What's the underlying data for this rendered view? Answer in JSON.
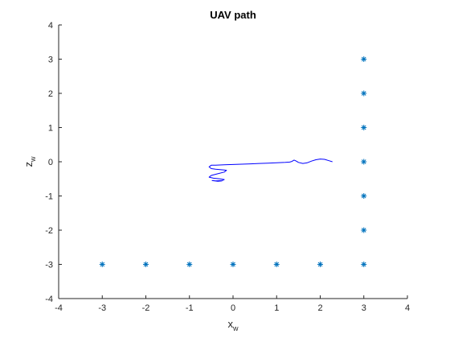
{
  "chart_data": {
    "type": "line",
    "title": "UAV path",
    "xlabel": {
      "main": "x",
      "sub": "w"
    },
    "ylabel": {
      "main": "z",
      "sub": "w"
    },
    "xlim": [
      -4,
      4
    ],
    "ylim": [
      -4,
      4
    ],
    "xticks": [
      -4,
      -3,
      -2,
      -1,
      0,
      1,
      2,
      3,
      4
    ],
    "yticks": [
      -4,
      -3,
      -2,
      -1,
      0,
      1,
      2,
      3,
      4
    ],
    "xtick_labels": [
      "-4",
      "-3",
      "-2",
      "-1",
      "0",
      "1",
      "2",
      "3",
      "4"
    ],
    "ytick_labels": [
      "-4",
      "-3",
      "-2",
      "-1",
      "0",
      "1",
      "2",
      "3",
      "4"
    ],
    "grid": false,
    "series": [
      {
        "kind": "scatter",
        "marker": "asterisk",
        "color": "#0072BD",
        "x": [
          -3,
          -2,
          -1,
          0,
          1,
          2,
          3,
          3,
          3,
          3,
          3,
          3,
          3
        ],
        "y": [
          -3,
          -3,
          -3,
          -3,
          -3,
          -3,
          -3,
          -2,
          -1,
          0,
          1,
          2,
          3
        ]
      },
      {
        "kind": "line",
        "color": "#0000FF",
        "x": [
          2.28,
          2.2,
          2.1,
          2.0,
          1.9,
          1.8,
          1.7,
          1.6,
          1.5,
          1.45,
          1.4,
          1.35,
          1.3,
          1.2,
          1.0,
          0.8,
          0.6,
          0.4,
          0.2,
          0.0,
          -0.2,
          -0.4,
          -0.5,
          -0.55,
          -0.5,
          -0.4,
          -0.3,
          -0.2,
          -0.15,
          -0.2,
          -0.35,
          -0.5,
          -0.55,
          -0.45,
          -0.3,
          -0.2,
          -0.25,
          -0.4,
          -0.48,
          -0.35,
          -0.25
        ],
        "y": [
          0.0,
          0.03,
          0.07,
          0.08,
          0.06,
          0.02,
          -0.03,
          -0.05,
          -0.02,
          0.02,
          0.05,
          0.01,
          -0.01,
          -0.02,
          -0.03,
          -0.04,
          -0.05,
          -0.06,
          -0.07,
          -0.08,
          -0.09,
          -0.1,
          -0.1,
          -0.15,
          -0.2,
          -0.22,
          -0.23,
          -0.24,
          -0.25,
          -0.3,
          -0.35,
          -0.4,
          -0.45,
          -0.48,
          -0.5,
          -0.52,
          -0.55,
          -0.56,
          -0.55,
          -0.57,
          -0.56
        ]
      }
    ]
  }
}
